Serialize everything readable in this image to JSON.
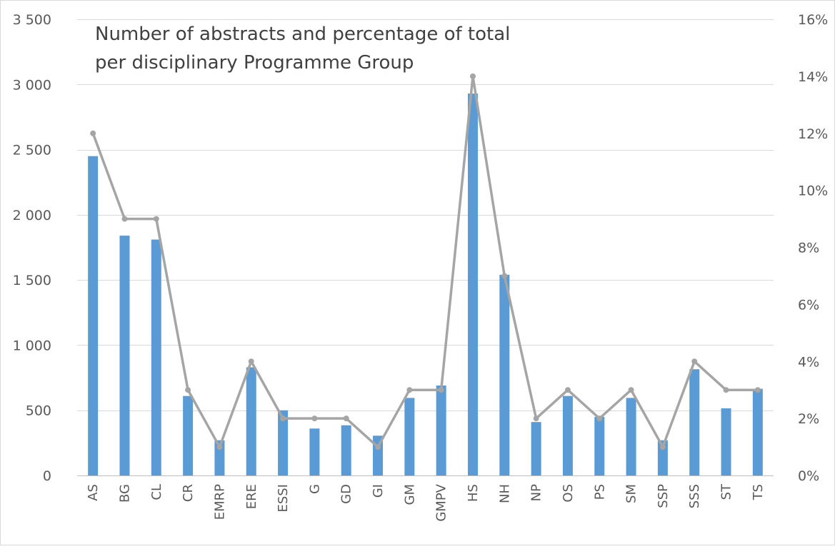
{
  "chart_data": {
    "type": "bar",
    "title_lines": [
      "Number of abstracts and percentage of total",
      "per disciplinary Programme Group"
    ],
    "categories": [
      "AS",
      "BG",
      "CL",
      "CR",
      "EMRP",
      "ERE",
      "ESSI",
      "G",
      "GD",
      "GI",
      "GM",
      "GMPV",
      "HS",
      "NH",
      "NP",
      "OS",
      "PS",
      "SM",
      "SSP",
      "SSS",
      "ST",
      "TS"
    ],
    "series": [
      {
        "type": "bar",
        "axis": "left",
        "values": [
          2450,
          1840,
          1810,
          610,
          270,
          830,
          500,
          360,
          385,
          305,
          595,
          690,
          2930,
          1540,
          410,
          610,
          450,
          595,
          270,
          815,
          515,
          665
        ]
      },
      {
        "type": "line",
        "axis": "right",
        "values": [
          12,
          9,
          9,
          3,
          1,
          4,
          2,
          2,
          2,
          1,
          3,
          3,
          14,
          7,
          2,
          3,
          2,
          3,
          1,
          4,
          3,
          3
        ]
      }
    ],
    "y_left": {
      "min": 0,
      "max": 3500,
      "ticks": [
        "0",
        "500",
        "1 000",
        "1 500",
        "2 000",
        "2 500",
        "3 000",
        "3 500"
      ],
      "tick_values": [
        0,
        500,
        1000,
        1500,
        2000,
        2500,
        3000,
        3500
      ]
    },
    "y_right": {
      "min": 0,
      "max": 16,
      "ticks": [
        "0%",
        "2%",
        "4%",
        "6%",
        "8%",
        "10%",
        "12%",
        "14%",
        "16%"
      ],
      "tick_values": [
        0,
        2,
        4,
        6,
        8,
        10,
        12,
        14,
        16
      ]
    },
    "grid": true,
    "colors": {
      "bar": "#5b9bd5",
      "line": "#a5a5a5"
    }
  }
}
